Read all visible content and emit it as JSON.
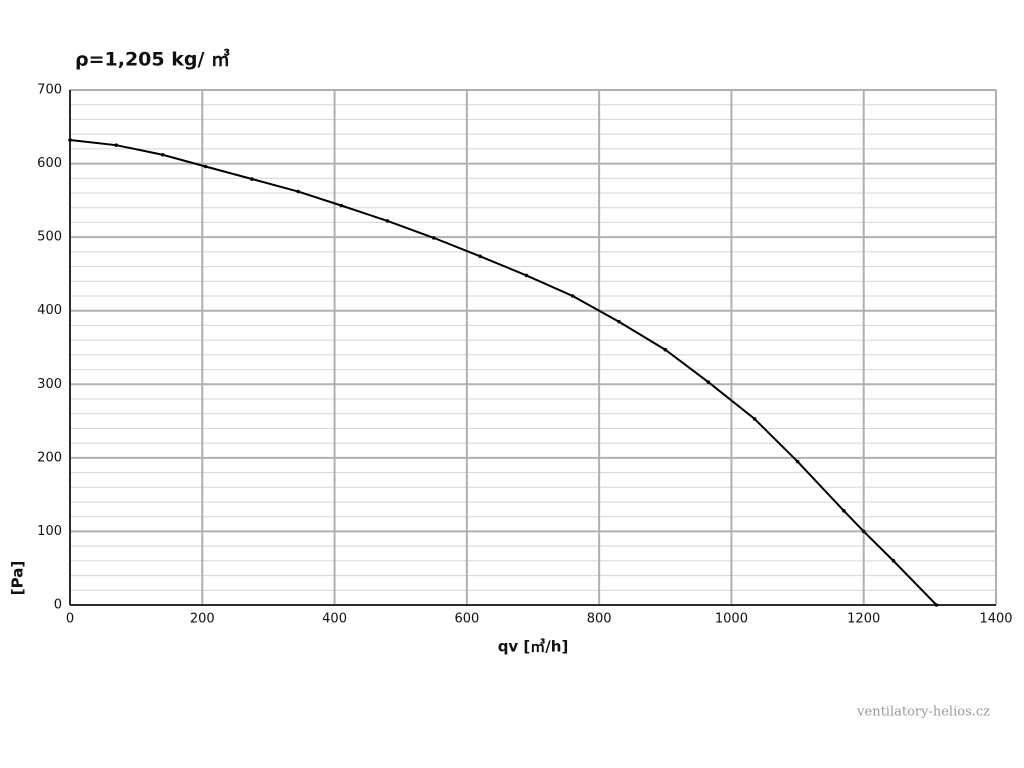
{
  "chart_data": {
    "type": "line",
    "title": "ρ=1,205 kg/ ㎥",
    "x_label": "qv [㎥/h]",
    "y_label": "[Pa]",
    "watermark": "ventilatory-helios.cz",
    "x": [
      0,
      70,
      140,
      205,
      275,
      345,
      410,
      480,
      550,
      620,
      690,
      760,
      830,
      900,
      965,
      1035,
      1100,
      1170,
      1200,
      1245,
      1310
    ],
    "series": [
      {
        "name": "qv",
        "color": "#000000",
        "values": [
          632,
          625,
          612,
          596,
          579,
          562,
          543,
          522,
          499,
          474,
          448,
          420,
          385,
          347,
          303,
          253,
          195,
          128,
          100,
          60,
          0
        ]
      }
    ],
    "xlim": [
      0,
      1400
    ],
    "xticks": [
      0,
      200,
      400,
      600,
      800,
      1000,
      1200,
      1400
    ],
    "ylim": [
      0,
      700
    ],
    "yticks": [
      0,
      100,
      200,
      300,
      400,
      500,
      600,
      700
    ],
    "grid": true,
    "minor_grid": true
  }
}
